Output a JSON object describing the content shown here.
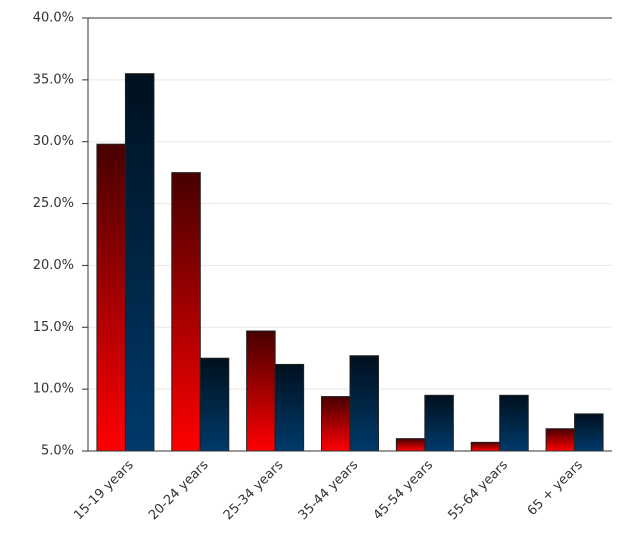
{
  "chart_data": {
    "type": "bar",
    "categories": [
      "15-19 years",
      "20-24 years",
      "25-34 years",
      "35-44 years",
      "45-54 years",
      "55-64 years",
      "65 + years"
    ],
    "series": [
      {
        "color": "#ff0000",
        "values": [
          29.8,
          27.5,
          14.7,
          9.4,
          6.0,
          5.7,
          6.8
        ]
      },
      {
        "color": "#003a6b",
        "values": [
          35.5,
          12.5,
          12.0,
          12.7,
          9.5,
          9.5,
          8.0
        ]
      }
    ],
    "ylim": [
      5,
      40
    ],
    "yticks": [
      {
        "value": 5,
        "label": "5.0%"
      },
      {
        "value": 10,
        "label": "10.0%"
      },
      {
        "value": 15,
        "label": "15.0%"
      },
      {
        "value": 20,
        "label": "20.0%"
      },
      {
        "value": 25,
        "label": "25.0%"
      },
      {
        "value": 30,
        "label": "30.0%"
      },
      {
        "value": 35,
        "label": "35.0%"
      },
      {
        "value": 40,
        "label": "40.0%"
      }
    ],
    "grid": true
  }
}
